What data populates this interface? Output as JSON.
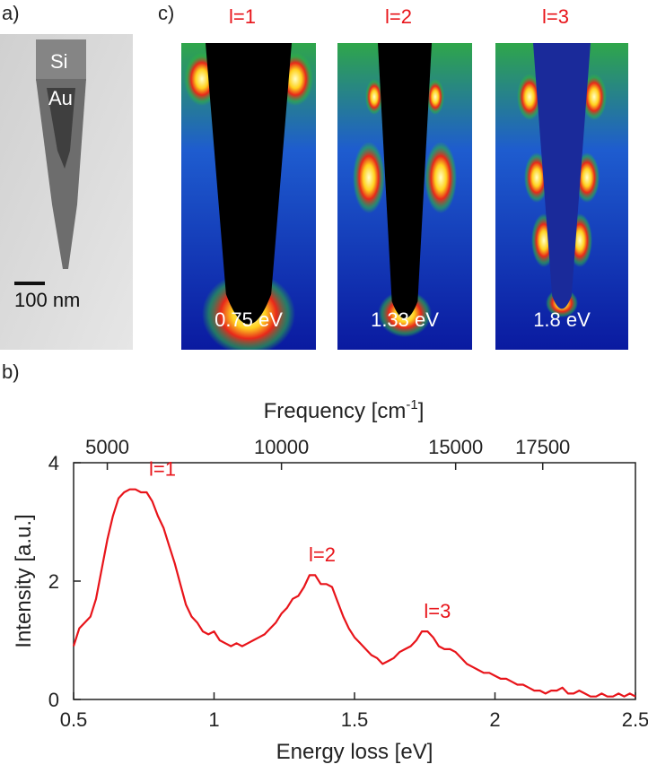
{
  "panel_labels": {
    "a": "a)",
    "b": "b)",
    "c": "c)"
  },
  "panel_a": {
    "materials": [
      "Si",
      "Au"
    ],
    "scale_bar": "100 nm"
  },
  "panel_c": {
    "maps": [
      {
        "mode": "l=1",
        "energy": "0.75 eV"
      },
      {
        "mode": "l=2",
        "energy": "1.33 eV"
      },
      {
        "mode": "l=3",
        "energy": "1.8 eV"
      }
    ]
  },
  "chart_data": {
    "type": "line",
    "xlabel": "Energy loss [eV]",
    "ylabel": "Intensity [a.u.]",
    "top_axis_label": "Frequency [cm-1]",
    "top_axis_label_base": "Frequency [cm",
    "top_axis_label_sup": "-1",
    "top_axis_label_end": "]",
    "xlim": [
      0.5,
      2.5
    ],
    "ylim": [
      0,
      4
    ],
    "x_ticks": [
      0.5,
      1,
      1.5,
      2,
      2.5
    ],
    "x_tick_labels": [
      "0.5",
      "1",
      "1.5",
      "2",
      "2.5"
    ],
    "y_ticks": [
      0,
      2,
      4
    ],
    "y_tick_labels": [
      "0",
      "2",
      "4"
    ],
    "top_ticks": [
      {
        "label": "5000",
        "x": 0.62
      },
      {
        "label": "10000",
        "x": 1.24
      },
      {
        "label": "15000",
        "x": 1.86
      },
      {
        "label": "17500",
        "x": 2.17
      }
    ],
    "series_color": "#e8141a",
    "peak_labels": [
      {
        "text": "l=1",
        "x": 0.73,
        "y": 3.6
      },
      {
        "text": "l=2",
        "x": 1.35,
        "y": 2.15
      },
      {
        "text": "l=3",
        "x": 1.76,
        "y": 1.2
      }
    ],
    "series": [
      {
        "x": [
          0.5,
          0.52,
          0.54,
          0.56,
          0.58,
          0.6,
          0.62,
          0.64,
          0.66,
          0.68,
          0.7,
          0.72,
          0.74,
          0.76,
          0.78,
          0.8,
          0.82,
          0.84,
          0.86,
          0.88,
          0.9,
          0.92,
          0.94,
          0.96,
          0.98,
          1.0,
          1.02,
          1.04,
          1.06,
          1.08,
          1.1,
          1.12,
          1.14,
          1.16,
          1.18,
          1.2,
          1.22,
          1.24,
          1.26,
          1.28,
          1.3,
          1.32,
          1.34,
          1.36,
          1.38,
          1.4,
          1.42,
          1.44,
          1.46,
          1.48,
          1.5,
          1.52,
          1.54,
          1.56,
          1.58,
          1.6,
          1.62,
          1.64,
          1.66,
          1.68,
          1.7,
          1.72,
          1.74,
          1.76,
          1.78,
          1.8,
          1.82,
          1.84,
          1.86,
          1.88,
          1.9,
          1.92,
          1.94,
          1.96,
          1.98,
          2.0,
          2.02,
          2.04,
          2.06,
          2.08,
          2.1,
          2.12,
          2.14,
          2.16,
          2.18,
          2.2,
          2.22,
          2.24,
          2.26,
          2.28,
          2.3,
          2.32,
          2.34,
          2.36,
          2.38,
          2.4,
          2.42,
          2.44,
          2.46,
          2.48,
          2.5
        ],
        "y": [
          0.9,
          1.2,
          1.3,
          1.4,
          1.7,
          2.2,
          2.7,
          3.1,
          3.4,
          3.5,
          3.55,
          3.55,
          3.5,
          3.5,
          3.35,
          3.1,
          2.9,
          2.6,
          2.3,
          1.95,
          1.6,
          1.4,
          1.3,
          1.15,
          1.1,
          1.15,
          1.0,
          0.95,
          0.9,
          0.95,
          0.9,
          0.95,
          1.0,
          1.05,
          1.1,
          1.2,
          1.3,
          1.45,
          1.55,
          1.7,
          1.75,
          1.9,
          2.1,
          2.1,
          1.95,
          1.95,
          1.9,
          1.65,
          1.4,
          1.2,
          1.05,
          0.95,
          0.85,
          0.75,
          0.7,
          0.6,
          0.65,
          0.7,
          0.8,
          0.85,
          0.9,
          1.0,
          1.15,
          1.15,
          1.05,
          0.9,
          0.85,
          0.85,
          0.8,
          0.7,
          0.6,
          0.55,
          0.5,
          0.45,
          0.45,
          0.4,
          0.35,
          0.35,
          0.3,
          0.25,
          0.25,
          0.2,
          0.15,
          0.15,
          0.1,
          0.15,
          0.15,
          0.2,
          0.1,
          0.1,
          0.15,
          0.1,
          0.05,
          0.05,
          0.1,
          0.05,
          0.05,
          0.1,
          0.05,
          0.1,
          0.05
        ]
      }
    ]
  }
}
